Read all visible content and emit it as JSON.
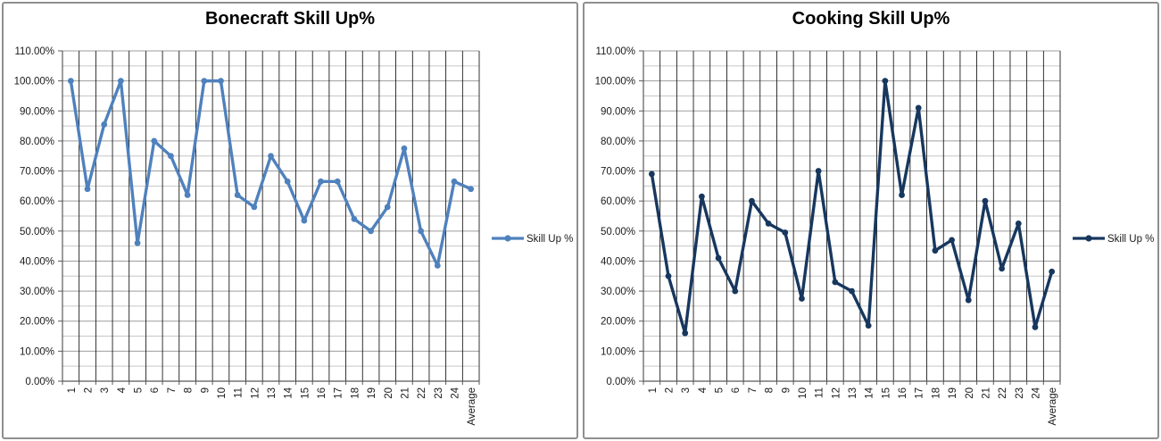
{
  "window": {
    "background": "#ffffff",
    "panel_border_color": "#8f8f8f"
  },
  "chart_data": [
    {
      "type": "line",
      "title": "Bonecraft Skill Up%",
      "series": [
        {
          "name": "Skill Up %",
          "color": "#4F81BD",
          "values": [
            100,
            64,
            85.5,
            100,
            46,
            80,
            75,
            62,
            100,
            100,
            62,
            58,
            75,
            66.5,
            53.5,
            66.5,
            66.5,
            54,
            50,
            58,
            77.5,
            50,
            38.5,
            66.5,
            64
          ]
        }
      ],
      "categories": [
        "1",
        "2",
        "3",
        "4",
        "5",
        "6",
        "7",
        "8",
        "9",
        "10",
        "11",
        "12",
        "13",
        "14",
        "15",
        "16",
        "17",
        "18",
        "19",
        "20",
        "21",
        "22",
        "23",
        "24",
        "Average"
      ],
      "xlabel": "",
      "ylabel": "",
      "ylim": [
        0,
        110
      ],
      "ytick_step": 10,
      "minor_ytick_step": 5,
      "ytick_labels": [
        "0.00%",
        "10.00%",
        "20.00%",
        "30.00%",
        "40.00%",
        "50.00%",
        "60.00%",
        "70.00%",
        "80.00%",
        "90.00%",
        "100.00%",
        "110.00%"
      ],
      "grid": {
        "horizontal_major": true,
        "horizontal_minor": true,
        "vertical": true
      },
      "legend_position": "right",
      "legend_label": "Skill Up %",
      "gridline_major_color": "#9d9d9d",
      "gridline_minor_color": "#c6c6c6",
      "gridline_vertical_color": "#000000",
      "axis_color": "#595959",
      "tick_label_color": "#1a1a1a"
    },
    {
      "type": "line",
      "title": "Cooking Skill Up%",
      "series": [
        {
          "name": "Skill Up %",
          "color": "#17375E",
          "values": [
            69,
            35,
            16,
            61.5,
            41,
            30,
            60,
            52.5,
            49.5,
            27.5,
            70,
            33,
            30,
            18.5,
            100,
            62,
            91,
            43.5,
            47,
            27,
            60,
            37.5,
            52.5,
            18,
            36.5
          ]
        }
      ],
      "categories": [
        "1",
        "2",
        "3",
        "4",
        "5",
        "6",
        "7",
        "8",
        "9",
        "10",
        "11",
        "12",
        "13",
        "14",
        "15",
        "16",
        "17",
        "18",
        "19",
        "20",
        "21",
        "22",
        "23",
        "24",
        "Average"
      ],
      "xlabel": "",
      "ylabel": "",
      "ylim": [
        0,
        110
      ],
      "ytick_step": 10,
      "minor_ytick_step": 5,
      "ytick_labels": [
        "0.00%",
        "10.00%",
        "20.00%",
        "30.00%",
        "40.00%",
        "50.00%",
        "60.00%",
        "70.00%",
        "80.00%",
        "90.00%",
        "100.00%",
        "110.00%"
      ],
      "grid": {
        "horizontal_major": true,
        "horizontal_minor": true,
        "vertical": true
      },
      "legend_position": "right",
      "legend_label": "Skill Up %",
      "gridline_major_color": "#9d9d9d",
      "gridline_minor_color": "#c6c6c6",
      "gridline_vertical_color": "#000000",
      "axis_color": "#595959",
      "tick_label_color": "#1a1a1a"
    }
  ]
}
